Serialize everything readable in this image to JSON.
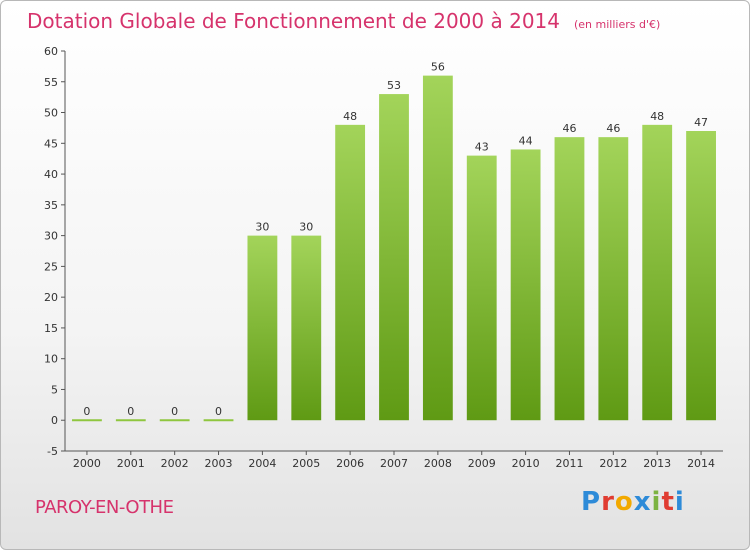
{
  "header": {
    "title": "Dotation Globale de Fonctionnement de 2000 à 2014",
    "subtitle": "(en milliers d'€)"
  },
  "footer": {
    "town": "PAROY-EN-OTHE",
    "logo": "Proxiti",
    "logo_colors": [
      "#2e8bd8",
      "#e03c31",
      "#f2a900",
      "#2e8bd8",
      "#7cb342",
      "#e03c31",
      "#2e8bd8"
    ]
  },
  "chart_data": {
    "type": "bar",
    "title": "Dotation Globale de Fonctionnement de 2000 à 2014",
    "subtitle": "(en milliers d'€)",
    "xlabel": "",
    "ylabel": "",
    "categories": [
      "2000",
      "2001",
      "2002",
      "2003",
      "2004",
      "2005",
      "2006",
      "2007",
      "2008",
      "2009",
      "2010",
      "2011",
      "2012",
      "2013",
      "2014"
    ],
    "values": [
      0,
      0,
      0,
      0,
      30,
      30,
      48,
      53,
      56,
      43,
      44,
      46,
      46,
      48,
      47
    ],
    "data_labels": [
      "0",
      "0",
      "0",
      "0",
      "30",
      "30",
      "48",
      "53",
      "56",
      "43",
      "44",
      "46",
      "46",
      "48",
      "47"
    ],
    "ylim": [
      -5,
      60
    ],
    "yticks": [
      -5,
      0,
      5,
      10,
      15,
      20,
      25,
      30,
      35,
      40,
      45,
      50,
      55,
      60
    ],
    "ytick_labels": [
      "-5",
      "0",
      "5",
      "10",
      "15",
      "20",
      "25",
      "30",
      "35",
      "40",
      "45",
      "50",
      "55",
      "60"
    ],
    "grid": false,
    "bar_color_top": "#a3d45a",
    "bar_color_bottom": "#5f9a14",
    "zero_line_color": "#8fc63f"
  }
}
